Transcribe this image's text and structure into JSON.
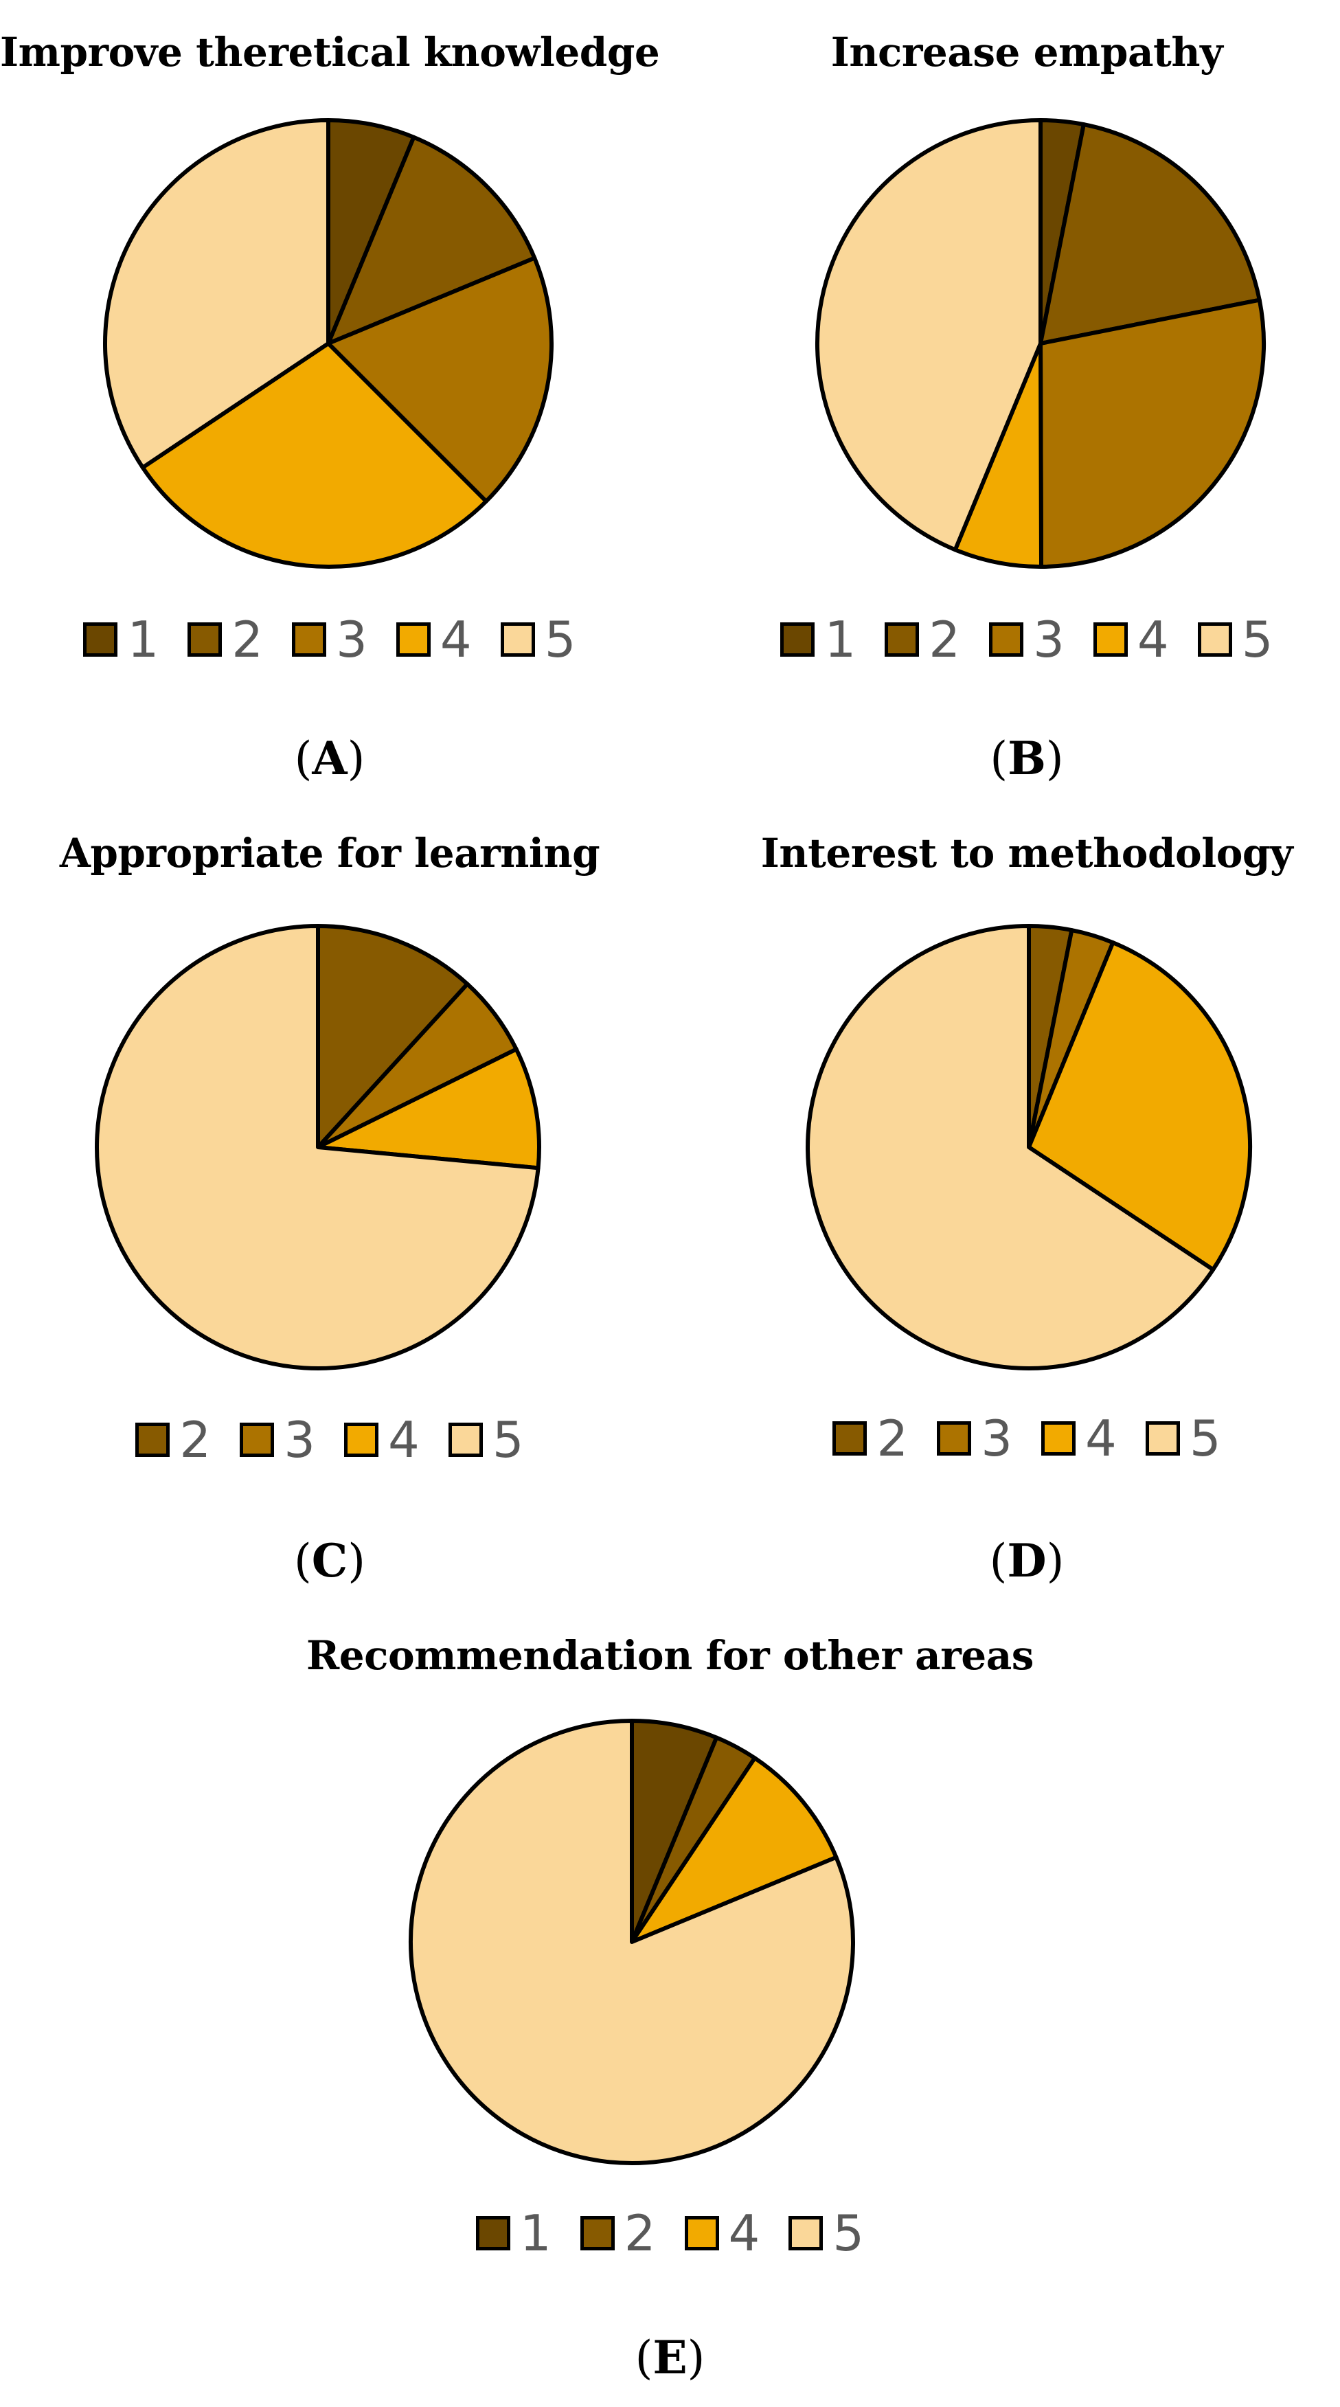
{
  "colors": {
    "1": "#6B4700",
    "2": "#875A00",
    "3": "#AC7300",
    "4": "#F2AA00",
    "5": "#FAD799",
    "outline": "#000000"
  },
  "chart_data": [
    {
      "type": "pie",
      "title": "Improve theretical knowledge",
      "panel_label": "A",
      "legend": [
        "1",
        "2",
        "3",
        "4",
        "5"
      ],
      "categories": [
        "1",
        "2",
        "3",
        "4",
        "5"
      ],
      "values": [
        6.25,
        12.5,
        18.75,
        28.125,
        34.375
      ]
    },
    {
      "type": "pie",
      "title": "Increase empathy",
      "panel_label": "B",
      "legend": [
        "1",
        "2",
        "3",
        "4",
        "5"
      ],
      "categories": [
        "1",
        "2",
        "3",
        "4",
        "5"
      ],
      "values": [
        3.1,
        18.8,
        28.1,
        6.3,
        43.8
      ]
    },
    {
      "type": "pie",
      "title": "Appropriate for learning",
      "panel_label": "C",
      "legend": [
        "2",
        "3",
        "4",
        "5"
      ],
      "categories": [
        "2",
        "3",
        "4",
        "5"
      ],
      "values": [
        11.8,
        5.9,
        8.8,
        73.5
      ]
    },
    {
      "type": "pie",
      "title": "Interest to methodology",
      "panel_label": "D",
      "legend": [
        "2",
        "3",
        "4",
        "5"
      ],
      "categories": [
        "2",
        "3",
        "4",
        "5"
      ],
      "values": [
        3.1,
        3.1,
        28.1,
        65.6
      ]
    },
    {
      "type": "pie",
      "title": "Recommendation for other areas",
      "panel_label": "E",
      "legend": [
        "1",
        "2",
        "4",
        "5"
      ],
      "categories": [
        "1",
        "2",
        "4",
        "5"
      ],
      "values": [
        6.25,
        3.125,
        9.375,
        81.25
      ]
    }
  ]
}
